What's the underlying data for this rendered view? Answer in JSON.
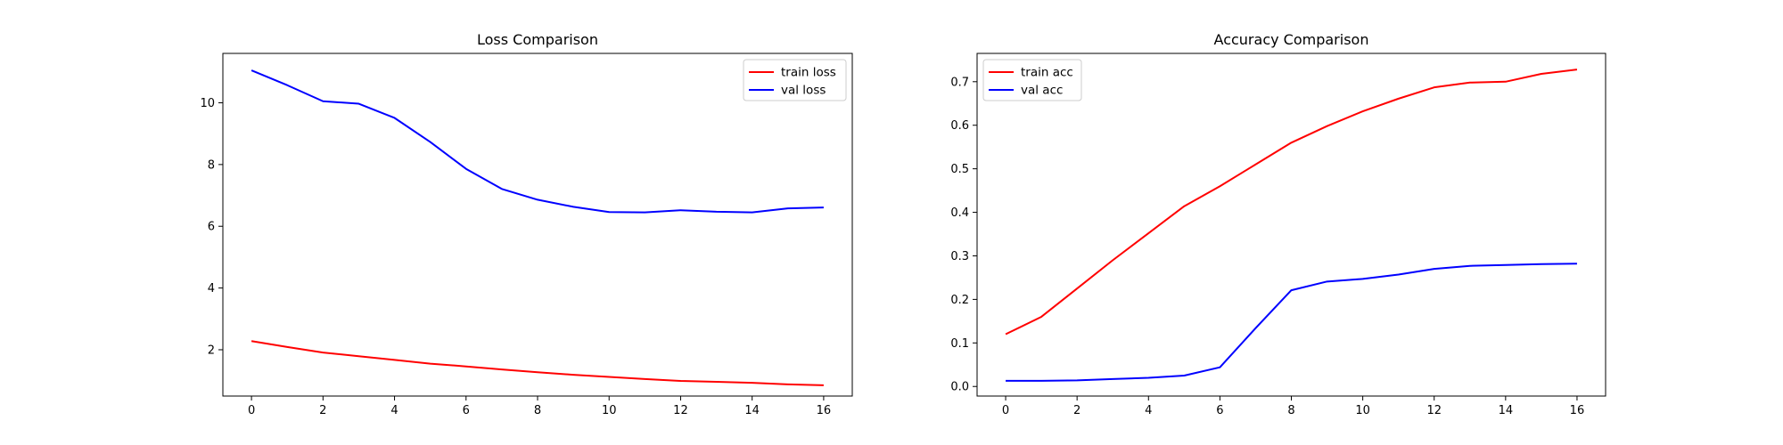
{
  "chart_data": [
    {
      "type": "line",
      "title": "Loss Comparison",
      "xlabel": "",
      "ylabel": "",
      "xlim": [
        -0.8,
        16.8
      ],
      "ylim": [
        0.5,
        11.6
      ],
      "xticks": [
        "0",
        "2",
        "4",
        "6",
        "8",
        "10",
        "12",
        "14",
        "16"
      ],
      "yticks": [
        "2",
        "4",
        "6",
        "8",
        "10"
      ],
      "grid": false,
      "legend_position": "top-right",
      "x": [
        0,
        1,
        2,
        3,
        4,
        5,
        6,
        7,
        8,
        9,
        10,
        11,
        12,
        13,
        14,
        15,
        16
      ],
      "series": [
        {
          "name": "train loss",
          "color": "#ff0000",
          "values": [
            2.28,
            2.09,
            1.91,
            1.79,
            1.67,
            1.55,
            1.46,
            1.36,
            1.27,
            1.19,
            1.12,
            1.05,
            0.99,
            0.96,
            0.93,
            0.88,
            0.85
          ]
        },
        {
          "name": "val loss",
          "color": "#0000ff",
          "values": [
            11.05,
            10.57,
            10.05,
            9.97,
            9.51,
            8.73,
            7.86,
            7.21,
            6.86,
            6.63,
            6.46,
            6.45,
            6.52,
            6.47,
            6.45,
            6.58,
            6.61
          ]
        }
      ]
    },
    {
      "type": "line",
      "title": "Accuracy Comparison",
      "xlabel": "",
      "ylabel": "",
      "xlim": [
        -0.8,
        16.8
      ],
      "ylim": [
        -0.022,
        0.765
      ],
      "xticks": [
        "0",
        "2",
        "4",
        "6",
        "8",
        "10",
        "12",
        "14",
        "16"
      ],
      "yticks": [
        "0.0",
        "0.1",
        "0.2",
        "0.3",
        "0.4",
        "0.5",
        "0.6",
        "0.7"
      ],
      "grid": false,
      "legend_position": "top-left",
      "x": [
        0,
        1,
        2,
        3,
        4,
        5,
        6,
        7,
        8,
        9,
        10,
        11,
        12,
        13,
        14,
        15,
        16
      ],
      "series": [
        {
          "name": "train acc",
          "color": "#ff0000",
          "values": [
            0.12,
            0.16,
            0.225,
            0.29,
            0.352,
            0.414,
            0.46,
            0.51,
            0.56,
            0.598,
            0.632,
            0.661,
            0.687,
            0.698,
            0.7,
            0.718,
            0.728
          ]
        },
        {
          "name": "val acc",
          "color": "#0000ff",
          "values": [
            0.013,
            0.013,
            0.014,
            0.017,
            0.02,
            0.025,
            0.044,
            0.134,
            0.221,
            0.241,
            0.247,
            0.257,
            0.27,
            0.277,
            0.279,
            0.281,
            0.282
          ]
        }
      ]
    }
  ]
}
